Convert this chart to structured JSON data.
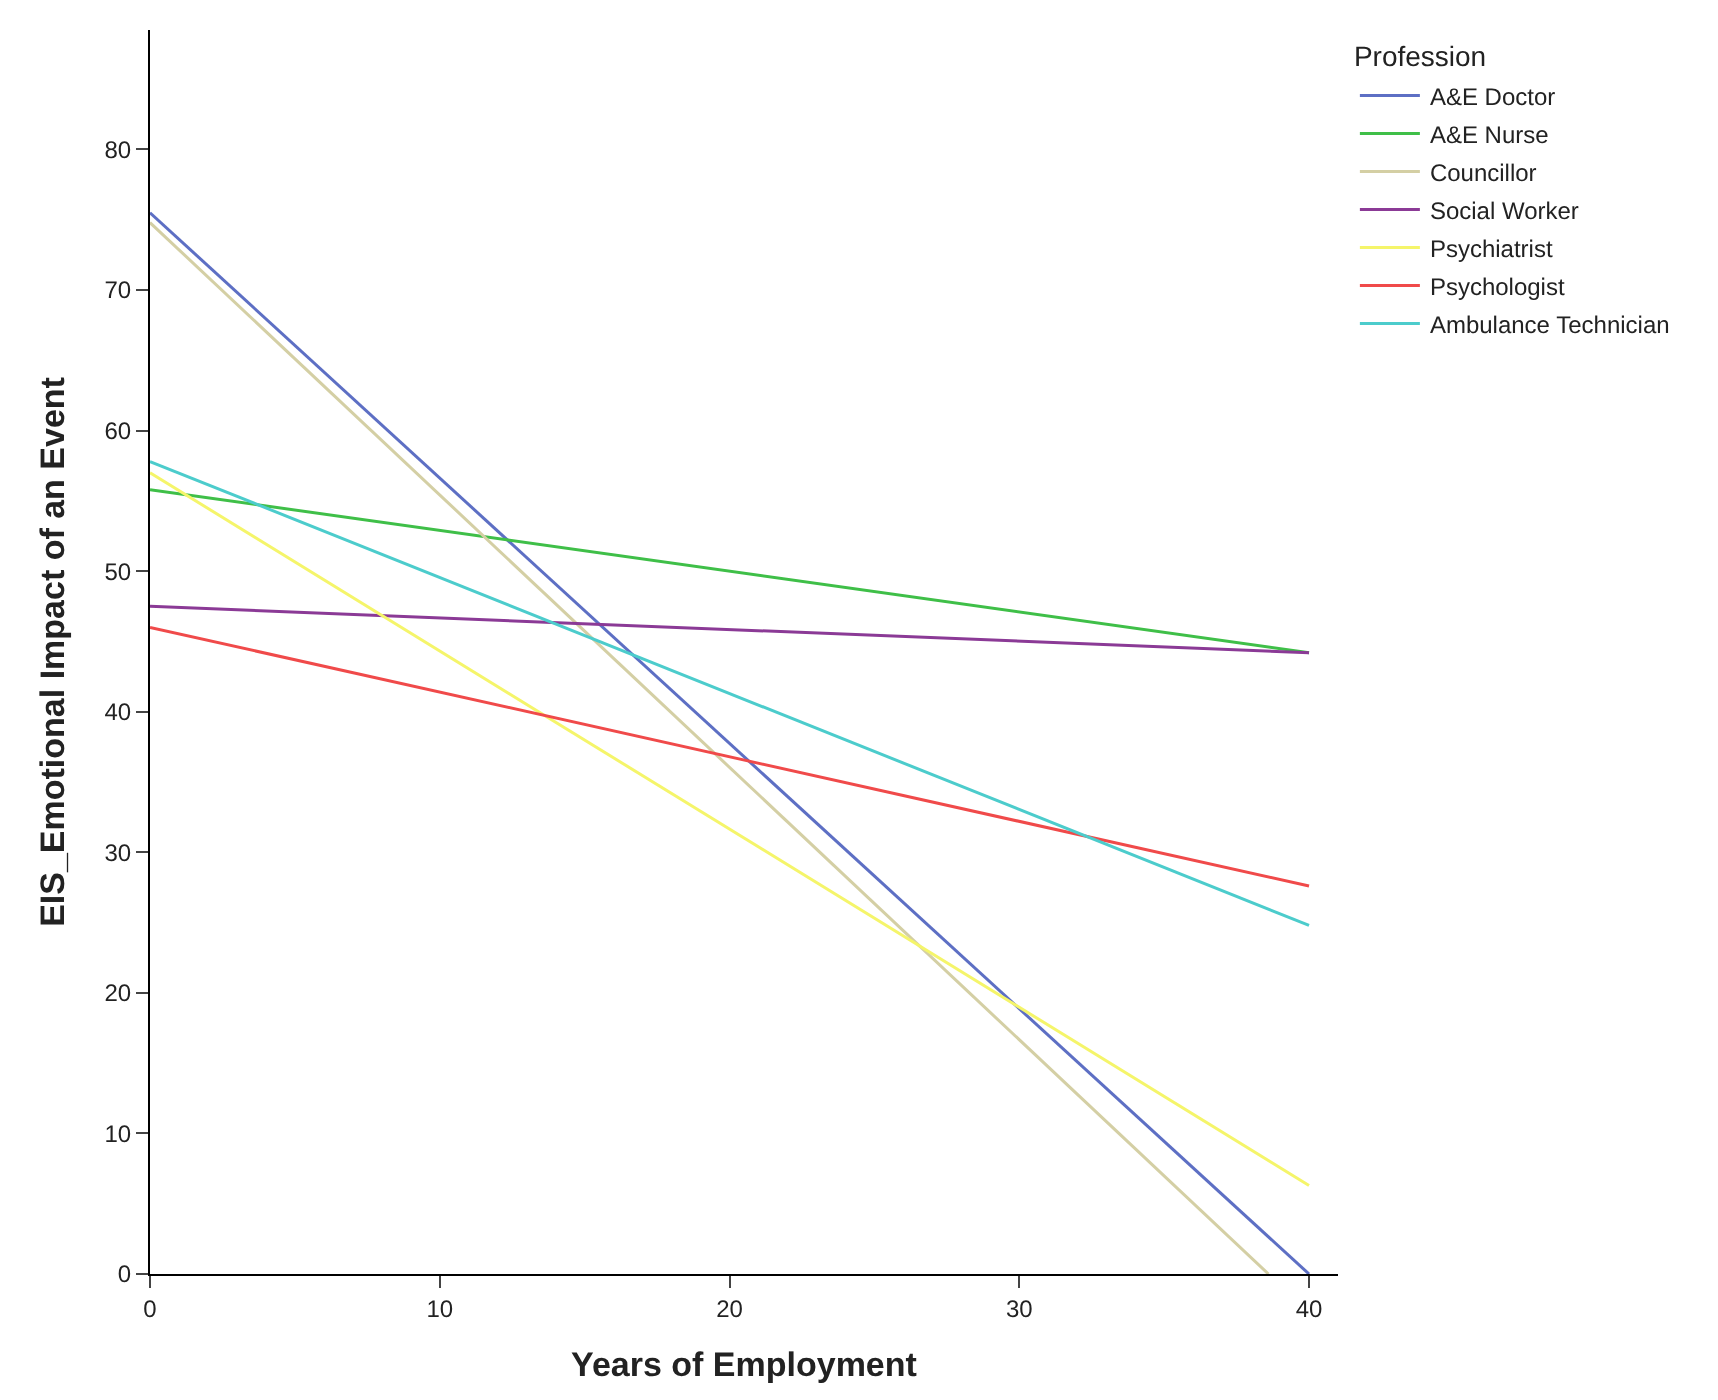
{
  "chart_data": {
    "type": "line",
    "xlabel": "Years of Employment",
    "ylabel": "EIS_Emotional Impact of an Event",
    "legend_title": "Profession",
    "xlim": [
      0,
      41
    ],
    "ylim": [
      0,
      88.5
    ],
    "xticks": [
      0,
      10,
      20,
      30,
      40
    ],
    "yticks": [
      0,
      10,
      20,
      30,
      40,
      50,
      60,
      70,
      80
    ],
    "legend": "top right",
    "marker": "none",
    "line_style": "solid",
    "series": [
      {
        "name": "A&E Doctor",
        "color": "#5d6fc4",
        "x": [
          0,
          40
        ],
        "values": [
          75.5,
          0
        ]
      },
      {
        "name": "A&E Nurse",
        "color": "#3fbf48",
        "x": [
          0,
          40
        ],
        "values": [
          55.8,
          44.2
        ]
      },
      {
        "name": "Councillor",
        "color": "#d4cfa4",
        "x": [
          0,
          38.6
        ],
        "values": [
          74.8,
          0
        ]
      },
      {
        "name": "Social Worker",
        "color": "#8b3a96",
        "x": [
          0,
          40
        ],
        "values": [
          47.5,
          44.2
        ]
      },
      {
        "name": "Psychiatrist",
        "color": "#f5f56a",
        "x": [
          0,
          40
        ],
        "values": [
          57,
          6.3
        ]
      },
      {
        "name": "Psychologist",
        "color": "#f04a4a",
        "x": [
          0,
          40
        ],
        "values": [
          46,
          27.6
        ]
      },
      {
        "name": "Ambulance Technician",
        "color": "#4ccccc",
        "x": [
          0,
          40
        ],
        "values": [
          57.8,
          24.8
        ]
      }
    ]
  }
}
